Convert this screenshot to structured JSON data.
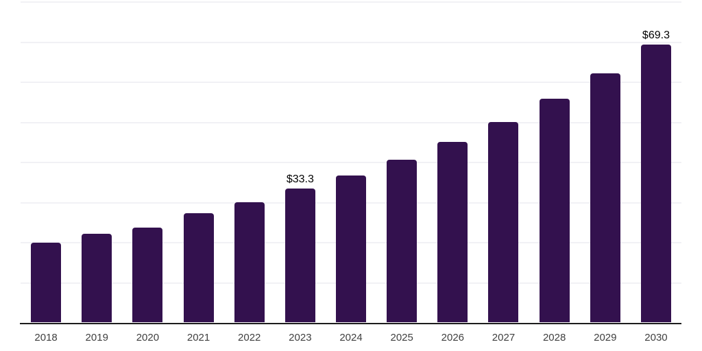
{
  "chart_data": {
    "type": "bar",
    "title": "",
    "xlabel": "",
    "ylabel": "",
    "categories": [
      "2018",
      "2019",
      "2020",
      "2021",
      "2022",
      "2023",
      "2024",
      "2025",
      "2026",
      "2027",
      "2028",
      "2029",
      "2030"
    ],
    "values": [
      19.8,
      22.0,
      23.6,
      27.2,
      30.0,
      33.3,
      36.6,
      40.5,
      45.0,
      50.0,
      55.7,
      62.0,
      69.3
    ],
    "data_labels": [
      "",
      "",
      "",
      "",
      "",
      "$33.3",
      "",
      "",
      "",
      "",
      "",
      "",
      "$69.3"
    ],
    "ylim": [
      0,
      80
    ],
    "grid_interval": 10,
    "grid": "horizontal-only",
    "legend": "none",
    "y_axis_labels_visible": false,
    "colors": {
      "bar": "#33114e",
      "gridline": "#f1f1f5",
      "axis_line": "#1c1c1c",
      "tick_label": "#3f3f3f",
      "data_label": "#000000",
      "background": "#ffffff"
    }
  }
}
